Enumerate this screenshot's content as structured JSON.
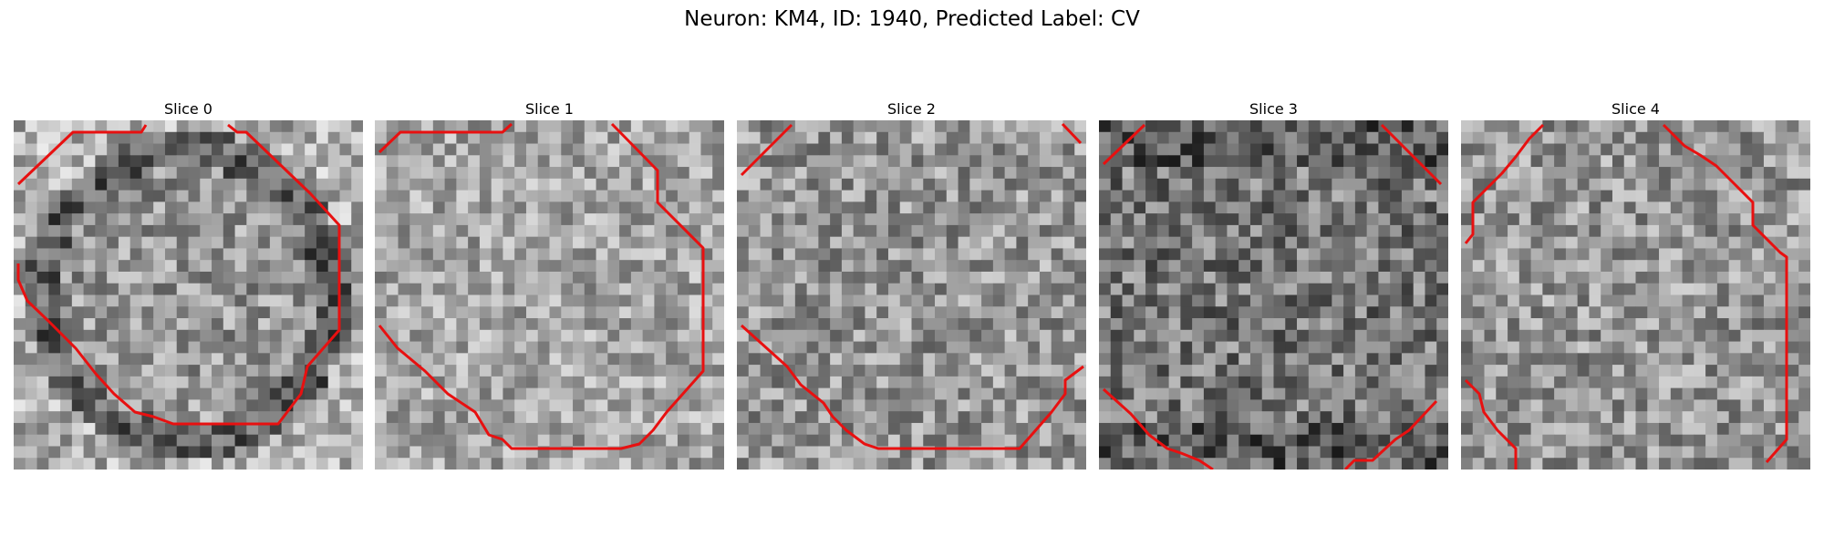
{
  "figure": {
    "title": "Neuron: KM4, ID: 1940, Predicted Label: CV",
    "contour_color": "#e81010"
  },
  "panels": [
    {
      "title": "Slice 0",
      "seed": 11,
      "tone": "ring"
    },
    {
      "title": "Slice 1",
      "seed": 23,
      "tone": "light"
    },
    {
      "title": "Slice 2",
      "seed": 37,
      "tone": "mixed"
    },
    {
      "title": "Slice 3",
      "seed": 41,
      "tone": "dark"
    },
    {
      "title": "Slice 4",
      "seed": 53,
      "tone": "mixed"
    }
  ]
}
